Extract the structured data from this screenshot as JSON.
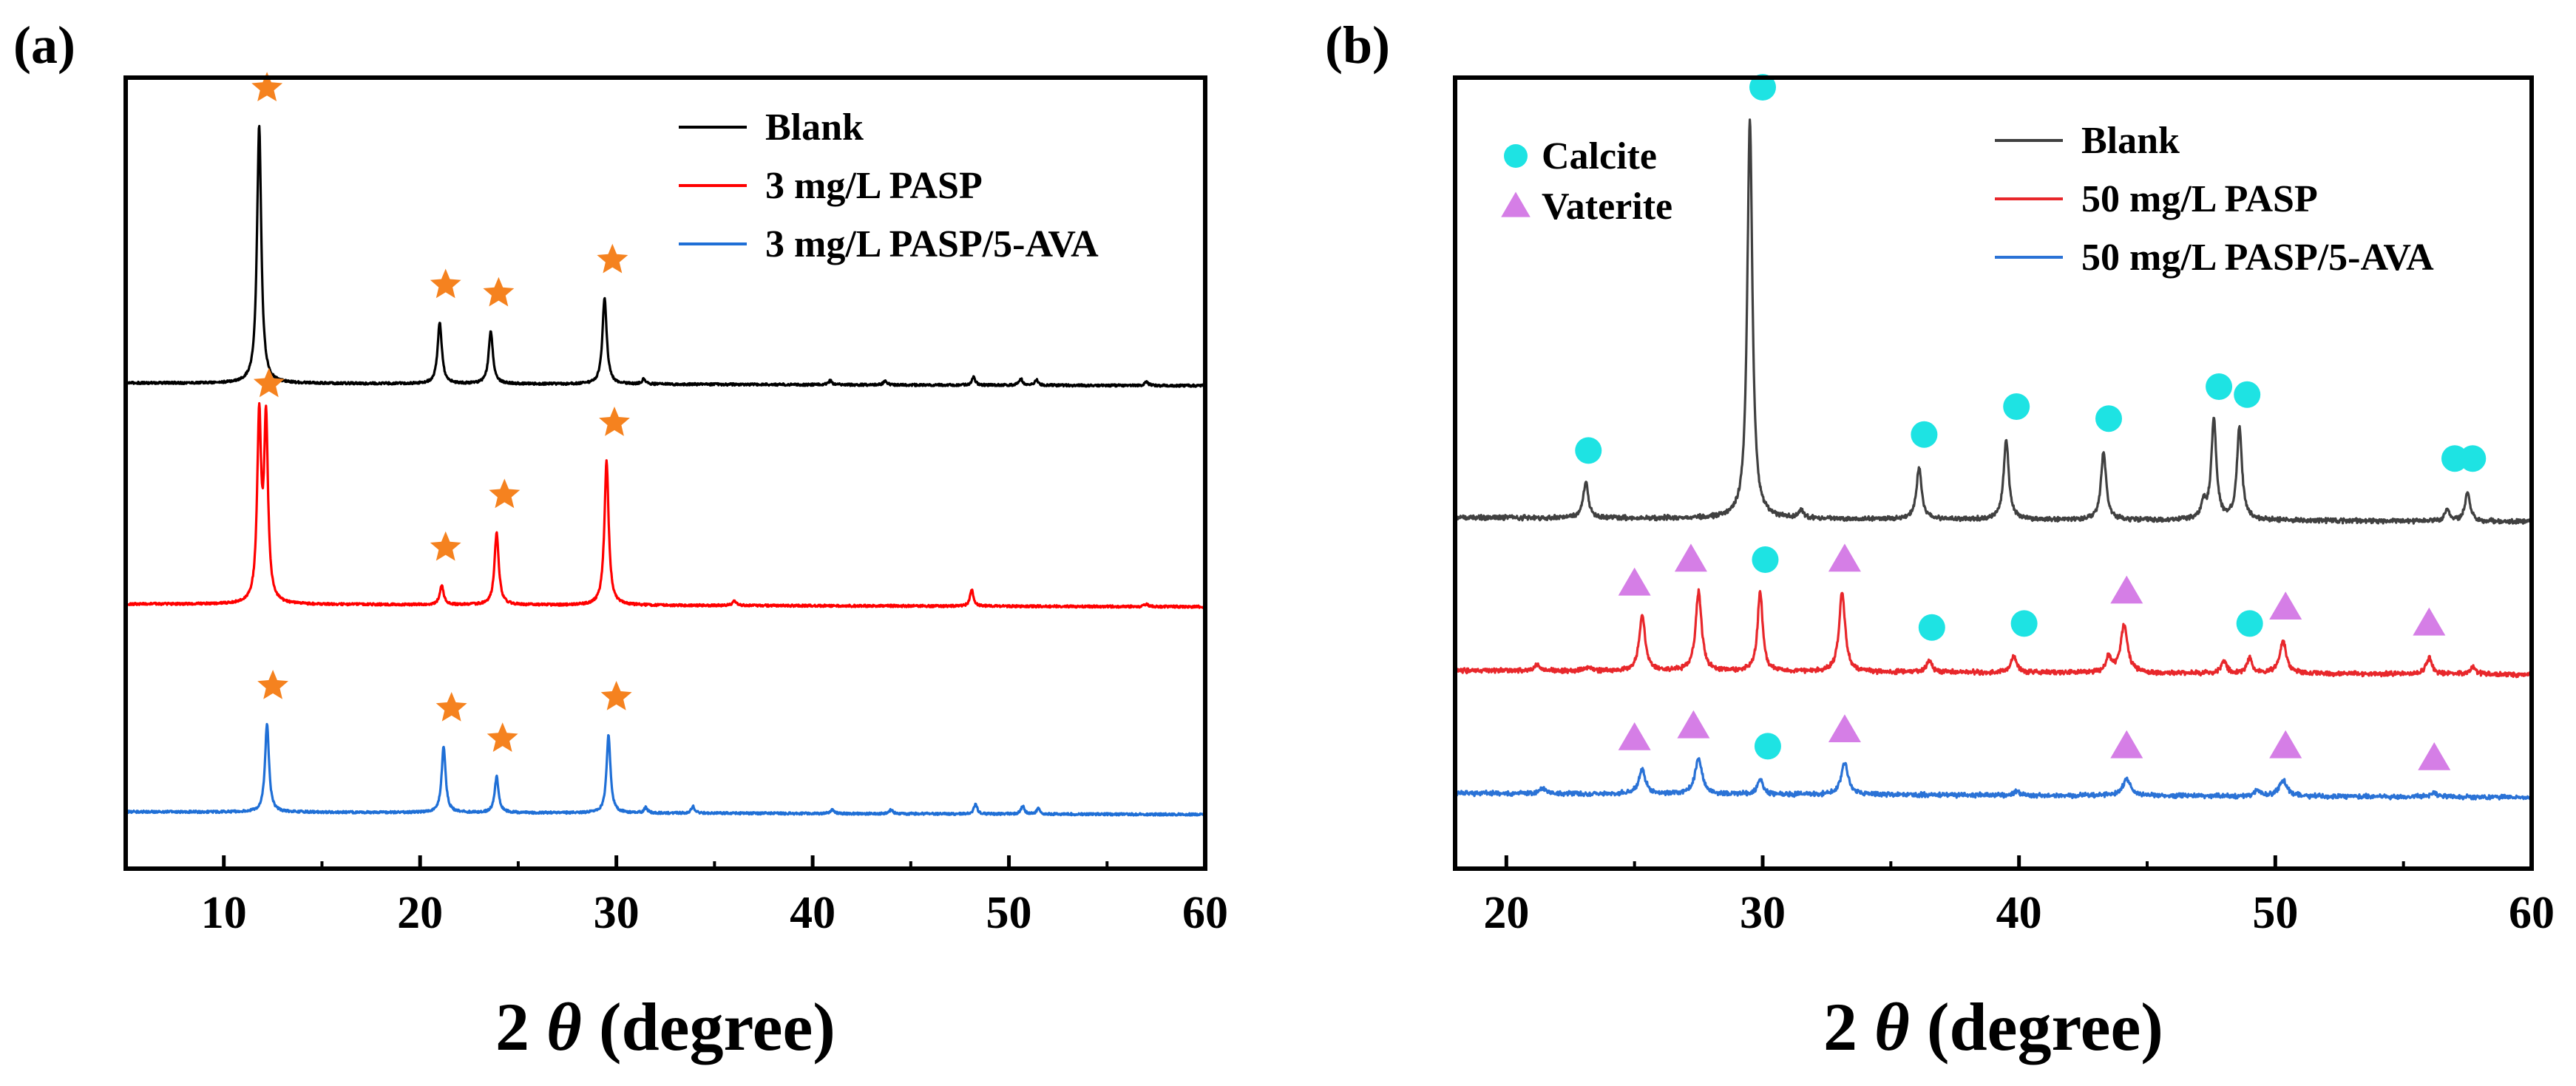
{
  "chart_data": [
    {
      "panel": "(a)",
      "type": "line",
      "xlabel_prefix": "2",
      "xlabel_symbol": "θ",
      "xlabel_suffix": "(degree)",
      "ylabel": "",
      "xlim": [
        5,
        60
      ],
      "x_ticks": [
        "10",
        "20",
        "30",
        "40",
        "50",
        "60"
      ],
      "y_ticks_shown": false,
      "grid": false,
      "legend_position": "top-right",
      "series": [
        {
          "name": "Blank",
          "color": "#000000",
          "peaks": [
            {
              "x": 11.8,
              "h": 0.93,
              "w": 0.13
            },
            {
              "x": 21.0,
              "h": 0.22,
              "w": 0.13
            },
            {
              "x": 23.6,
              "h": 0.19,
              "w": 0.13
            },
            {
              "x": 29.4,
              "h": 0.31,
              "w": 0.13
            },
            {
              "x": 31.4,
              "h": 0.02,
              "w": 0.1
            },
            {
              "x": 40.9,
              "h": 0.015,
              "w": 0.1
            },
            {
              "x": 43.7,
              "h": 0.015,
              "w": 0.1
            },
            {
              "x": 48.2,
              "h": 0.03,
              "w": 0.1
            },
            {
              "x": 50.6,
              "h": 0.025,
              "w": 0.1
            },
            {
              "x": 51.4,
              "h": 0.02,
              "w": 0.1
            },
            {
              "x": 57.0,
              "h": 0.015,
              "w": 0.1
            }
          ],
          "markers": [
            {
              "x": 12.2,
              "symbol": "star",
              "label": "★"
            },
            {
              "x": 21.3,
              "symbol": "star",
              "label": "★"
            },
            {
              "x": 24.0,
              "symbol": "star",
              "label": "★"
            },
            {
              "x": 29.8,
              "symbol": "star",
              "label": "★"
            }
          ]
        },
        {
          "name": "3 mg/L PASP",
          "color": "#ff0000",
          "peaks": [
            {
              "x": 11.8,
              "h": 0.66,
              "w": 0.12
            },
            {
              "x": 12.15,
              "h": 0.65,
              "w": 0.12
            },
            {
              "x": 21.1,
              "h": 0.07,
              "w": 0.12
            },
            {
              "x": 23.9,
              "h": 0.26,
              "w": 0.13
            },
            {
              "x": 29.5,
              "h": 0.52,
              "w": 0.13
            },
            {
              "x": 36.0,
              "h": 0.02,
              "w": 0.1
            },
            {
              "x": 48.1,
              "h": 0.06,
              "w": 0.1
            },
            {
              "x": 57.0,
              "h": 0.01,
              "w": 0.1
            }
          ],
          "markers": [
            {
              "x": 12.3,
              "symbol": "star",
              "label": "★"
            },
            {
              "x": 21.3,
              "symbol": "star",
              "label": "★"
            },
            {
              "x": 24.3,
              "symbol": "star",
              "label": "★"
            },
            {
              "x": 29.9,
              "symbol": "star",
              "label": "★"
            }
          ]
        },
        {
          "name": "3 mg/L PASP/5-AVA",
          "color": "#1f6fd6",
          "peaks": [
            {
              "x": 12.2,
              "h": 0.32,
              "w": 0.12
            },
            {
              "x": 21.2,
              "h": 0.24,
              "w": 0.12
            },
            {
              "x": 23.9,
              "h": 0.13,
              "w": 0.12
            },
            {
              "x": 29.6,
              "h": 0.28,
              "w": 0.12
            },
            {
              "x": 31.5,
              "h": 0.02,
              "w": 0.1
            },
            {
              "x": 33.9,
              "h": 0.025,
              "w": 0.1
            },
            {
              "x": 41.0,
              "h": 0.015,
              "w": 0.1
            },
            {
              "x": 44.0,
              "h": 0.015,
              "w": 0.1
            },
            {
              "x": 48.3,
              "h": 0.035,
              "w": 0.1
            },
            {
              "x": 50.7,
              "h": 0.03,
              "w": 0.1
            },
            {
              "x": 51.5,
              "h": 0.02,
              "w": 0.1
            }
          ],
          "markers": [
            {
              "x": 12.5,
              "symbol": "star",
              "label": "★"
            },
            {
              "x": 21.6,
              "symbol": "star",
              "label": "★"
            },
            {
              "x": 24.2,
              "symbol": "star",
              "label": "★"
            },
            {
              "x": 30.0,
              "symbol": "star",
              "label": "★"
            }
          ]
        }
      ],
      "annotations": [
        {
          "symbol": "star",
          "meaning": "diffraction peak marker",
          "color": "#f5821f"
        }
      ]
    },
    {
      "panel": "(b)",
      "type": "line",
      "xlabel_prefix": "2",
      "xlabel_symbol": "θ",
      "xlabel_suffix": "(degree)",
      "ylabel": "",
      "xlim": [
        18,
        60
      ],
      "x_ticks": [
        "20",
        "30",
        "40",
        "50",
        "60"
      ],
      "y_ticks_shown": false,
      "grid": false,
      "legend_position": "top-right",
      "phase_legend": [
        {
          "label": "Calcite",
          "symbol": "circle",
          "color": "#1ee3e3"
        },
        {
          "label": "Vaterite",
          "symbol": "triangle",
          "color": "#d57ee6"
        }
      ],
      "series": [
        {
          "name": "Blank",
          "color": "#404040",
          "peaks": [
            {
              "x": 23.1,
              "h": 0.09,
              "w": 0.12
            },
            {
              "x": 29.5,
              "h": 1.0,
              "w": 0.12
            },
            {
              "x": 31.5,
              "h": 0.02,
              "w": 0.1
            },
            {
              "x": 36.1,
              "h": 0.13,
              "w": 0.12
            },
            {
              "x": 39.5,
              "h": 0.2,
              "w": 0.12
            },
            {
              "x": 43.3,
              "h": 0.17,
              "w": 0.12
            },
            {
              "x": 47.2,
              "h": 0.04,
              "w": 0.1
            },
            {
              "x": 47.6,
              "h": 0.25,
              "w": 0.12
            },
            {
              "x": 48.6,
              "h": 0.23,
              "w": 0.12
            },
            {
              "x": 56.7,
              "h": 0.03,
              "w": 0.1
            },
            {
              "x": 57.5,
              "h": 0.07,
              "w": 0.12
            }
          ],
          "markers": [
            {
              "x": 23.2,
              "symbol": "circle",
              "phase": "Calcite"
            },
            {
              "x": 30.0,
              "symbol": "circle",
              "phase": "Calcite"
            },
            {
              "x": 36.3,
              "symbol": "circle",
              "phase": "Calcite"
            },
            {
              "x": 39.9,
              "symbol": "circle",
              "phase": "Calcite"
            },
            {
              "x": 43.5,
              "symbol": "circle",
              "phase": "Calcite"
            },
            {
              "x": 47.8,
              "symbol": "circle",
              "phase": "Calcite"
            },
            {
              "x": 48.9,
              "symbol": "circle",
              "phase": "Calcite"
            },
            {
              "x": 57.0,
              "symbol": "circle",
              "phase": "Calcite"
            },
            {
              "x": 57.7,
              "symbol": "circle",
              "phase": "Calcite"
            }
          ]
        },
        {
          "name": "50 mg/L PASP",
          "color": "#e8272b",
          "peaks": [
            {
              "x": 21.2,
              "h": 0.015,
              "w": 0.1
            },
            {
              "x": 23.2,
              "h": 0.01,
              "w": 0.1
            },
            {
              "x": 25.3,
              "h": 0.14,
              "w": 0.14
            },
            {
              "x": 27.5,
              "h": 0.2,
              "w": 0.14
            },
            {
              "x": 29.9,
              "h": 0.2,
              "w": 0.12
            },
            {
              "x": 33.1,
              "h": 0.2,
              "w": 0.14
            },
            {
              "x": 36.5,
              "h": 0.03,
              "w": 0.12
            },
            {
              "x": 39.8,
              "h": 0.04,
              "w": 0.14
            },
            {
              "x": 43.5,
              "h": 0.04,
              "w": 0.12
            },
            {
              "x": 44.1,
              "h": 0.12,
              "w": 0.16
            },
            {
              "x": 48.0,
              "h": 0.03,
              "w": 0.12
            },
            {
              "x": 49.0,
              "h": 0.04,
              "w": 0.12
            },
            {
              "x": 50.3,
              "h": 0.08,
              "w": 0.16
            },
            {
              "x": 56.0,
              "h": 0.04,
              "w": 0.14
            },
            {
              "x": 57.7,
              "h": 0.02,
              "w": 0.12
            }
          ],
          "markers": [
            {
              "x": 25.0,
              "symbol": "triangle",
              "phase": "Vaterite"
            },
            {
              "x": 27.2,
              "symbol": "triangle",
              "phase": "Vaterite"
            },
            {
              "x": 30.1,
              "symbol": "circle",
              "phase": "Calcite"
            },
            {
              "x": 33.2,
              "symbol": "triangle",
              "phase": "Vaterite"
            },
            {
              "x": 36.6,
              "symbol": "circle",
              "phase": "Calcite"
            },
            {
              "x": 40.2,
              "symbol": "circle",
              "phase": "Calcite"
            },
            {
              "x": 44.2,
              "symbol": "triangle",
              "phase": "Vaterite"
            },
            {
              "x": 49.0,
              "symbol": "circle",
              "phase": "Calcite"
            },
            {
              "x": 50.4,
              "symbol": "triangle",
              "phase": "Vaterite"
            },
            {
              "x": 56.0,
              "symbol": "triangle",
              "phase": "Vaterite"
            }
          ]
        },
        {
          "name": "50 mg/L PASP/5-AVA",
          "color": "#2a72d6",
          "peaks": [
            {
              "x": 21.4,
              "h": 0.015,
              "w": 0.12
            },
            {
              "x": 25.3,
              "h": 0.06,
              "w": 0.16
            },
            {
              "x": 27.5,
              "h": 0.09,
              "w": 0.16
            },
            {
              "x": 29.9,
              "h": 0.04,
              "w": 0.12
            },
            {
              "x": 33.2,
              "h": 0.08,
              "w": 0.16
            },
            {
              "x": 39.9,
              "h": 0.01,
              "w": 0.14
            },
            {
              "x": 44.2,
              "h": 0.04,
              "w": 0.2
            },
            {
              "x": 49.3,
              "h": 0.015,
              "w": 0.14
            },
            {
              "x": 50.3,
              "h": 0.04,
              "w": 0.18
            },
            {
              "x": 56.2,
              "h": 0.01,
              "w": 0.14
            }
          ],
          "markers": [
            {
              "x": 25.0,
              "symbol": "triangle",
              "phase": "Vaterite"
            },
            {
              "x": 27.3,
              "symbol": "triangle",
              "phase": "Vaterite"
            },
            {
              "x": 30.2,
              "symbol": "circle",
              "phase": "Calcite"
            },
            {
              "x": 33.2,
              "symbol": "triangle",
              "phase": "Vaterite"
            },
            {
              "x": 44.2,
              "symbol": "triangle",
              "phase": "Vaterite"
            },
            {
              "x": 50.4,
              "symbol": "triangle",
              "phase": "Vaterite"
            },
            {
              "x": 56.2,
              "symbol": "triangle",
              "phase": "Vaterite"
            }
          ]
        }
      ]
    }
  ]
}
